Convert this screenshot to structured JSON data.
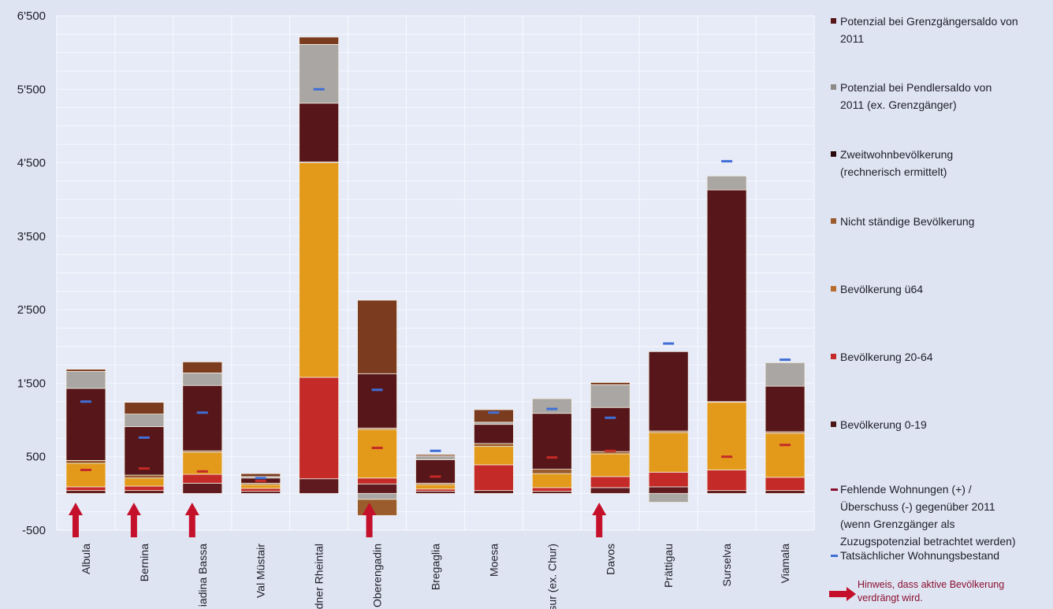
{
  "chart_data": {
    "type": "bar",
    "stacked": true,
    "title": "",
    "xlabel": "",
    "ylabel": "",
    "ylim": [
      -500,
      6500
    ],
    "yticks": [
      -500,
      500,
      1500,
      2500,
      3500,
      4500,
      5500,
      6500
    ],
    "ytick_labels": [
      "-500",
      "500",
      "1'500",
      "2'500",
      "3'500",
      "4'500",
      "5'500",
      "6'500"
    ],
    "grid": true,
    "legend_position": "right",
    "categories": [
      "Albula",
      "Bernina",
      "Engiadina Bassa",
      "Val Müstair",
      "Bündner Rheintal",
      "Oberengadin",
      "Bregaglia",
      "Moesa",
      "Plessur (ex. Chur)",
      "Davos",
      "Prättigau",
      "Surselva",
      "Viamala"
    ],
    "category_labels": [
      "Albula",
      "Bernina",
      "iadina Bassa",
      "Val Müstair",
      "dner Rheintal",
      "Oberengadin",
      "Bregaglia",
      "Moesa",
      "essur (ex. Chur)",
      "Davos",
      "Prättigau",
      "Surselva",
      "Viamala"
    ],
    "series": [
      {
        "name": "Bevölkerung 0-19",
        "color": "#5e1a1f",
        "values": [
          40,
          40,
          140,
          30,
          200,
          130,
          30,
          40,
          30,
          80,
          90,
          40,
          40
        ]
      },
      {
        "name": "Bevölkerung 20-64",
        "color": "#c42a27",
        "values": [
          50,
          60,
          120,
          40,
          1380,
          80,
          30,
          350,
          50,
          150,
          200,
          280,
          180
        ]
      },
      {
        "name": "Bevölkerung ü64",
        "color": "#e39a1b",
        "values": [
          320,
          110,
          300,
          50,
          2920,
          660,
          60,
          250,
          190,
          310,
          540,
          920,
          600
        ]
      },
      {
        "name": "Nicht ständige Bevölkerung",
        "color": "#9a5c2c",
        "values": [
          40,
          40,
          20,
          20,
          10,
          20,
          20,
          40,
          60,
          30,
          20,
          10,
          20
        ]
      },
      {
        "name": "Zweitwohnbevölkerung (rechnerisch ermittelt)",
        "color": "#571619",
        "values": [
          980,
          660,
          890,
          70,
          800,
          740,
          320,
          260,
          760,
          600,
          1080,
          2880,
          620
        ]
      },
      {
        "name": "Potenzial bei  Pendlersaldo von 2011 (ex. Grenzgänger)",
        "color": "#aaa6a3",
        "values": [
          230,
          170,
          170,
          20,
          800,
          0,
          50,
          30,
          200,
          310,
          0,
          190,
          320
        ]
      },
      {
        "name": "Potenzial bei Grenzgängersaldo von 2011",
        "color": "#7a3b1f",
        "values": [
          30,
          160,
          150,
          40,
          100,
          1000,
          20,
          170,
          0,
          30,
          0,
          0,
          0
        ]
      }
    ],
    "negative_series": [
      {
        "name": "Potenzial bei  Pendlersaldo von 2011 (ex. Grenzgänger)",
        "values": [
          0,
          0,
          0,
          0,
          0,
          -80,
          0,
          0,
          0,
          0,
          -120,
          0,
          0
        ]
      },
      {
        "name": "Nicht ständige Bevölkerung",
        "values": [
          0,
          0,
          0,
          0,
          0,
          -220,
          0,
          0,
          0,
          0,
          0,
          0,
          0
        ]
      }
    ],
    "markers": [
      {
        "name": "Fehlende Wohnungen (+) / Überschuss (-) gegenüber 2011 (wenn Grenzgänger als Zuzugspotenzial betrachtet werden)",
        "color": "#c42a27",
        "values": [
          320,
          340,
          300,
          170,
          950,
          620,
          230,
          330,
          490,
          580,
          180,
          500,
          660
        ]
      },
      {
        "name": "Tatsächlicher Wohnungsbestand",
        "color": "#3f6fd6",
        "values": [
          1250,
          760,
          1100,
          210,
          5500,
          1410,
          580,
          1100,
          1150,
          1030,
          2040,
          4520,
          1820
        ]
      }
    ],
    "hint_arrows": [
      "Albula",
      "Bernina",
      "Engiadina Bassa",
      "Oberengadin",
      "Davos"
    ]
  },
  "legend": {
    "items": [
      {
        "label": "Potenzial bei Grenzgängersaldo von\n2011",
        "color": "#571619",
        "kind": "square"
      },
      {
        "label": "Potenzial bei  Pendlersaldo von\n2011 (ex. Grenzgänger)",
        "color": "#8e8a88",
        "kind": "square"
      },
      {
        "label": "Zweitwohnbevölkerung\n(rechnerisch ermittelt)",
        "color": "#2a0a0c",
        "kind": "square"
      },
      {
        "label": "Nicht ständige Bevölkerung",
        "color": "#9a5c2c",
        "kind": "square"
      },
      {
        "label": "Bevölkerung ü64",
        "color": "#b76d2e",
        "kind": "square"
      },
      {
        "label": "Bevölkerung 20-64",
        "color": "#c42a27",
        "kind": "square"
      },
      {
        "label": "Bevölkerung 0-19",
        "color": "#4a1316",
        "kind": "square"
      },
      {
        "label": "Fehlende Wohnungen (+) /\nÜberschuss (-) gegenüber 2011\n(wenn Grenzgänger als\nZuzugspotenzial betrachtet werden)",
        "color": "#8a1030",
        "kind": "dash"
      },
      {
        "label": "Tatsächlicher Wohnungsbestand",
        "color": "#3f6fd6",
        "kind": "dash"
      }
    ],
    "note": "Hinweis, dass aktive Bevölkerung\nverdrängt wird.",
    "arrow_color": "#c4102a"
  }
}
